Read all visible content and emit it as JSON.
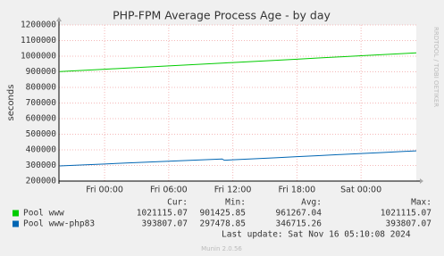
{
  "chart_data": {
    "type": "line",
    "title": "PHP-FPM Average Process Age - by day",
    "y_label": "seconds",
    "x": [
      -4.2,
      -2,
      0,
      2,
      4,
      6,
      8,
      10,
      11,
      11.2,
      12,
      14,
      16,
      18,
      20,
      22,
      24,
      26,
      28,
      29.17
    ],
    "series": [
      {
        "name": "Pool www",
        "color": "#00cc00",
        "values": [
          901426,
          909300,
          916500,
          923700,
          930900,
          938000,
          945200,
          952400,
          955900,
          956600,
          959500,
          966700,
          973900,
          981000,
          988200,
          995400,
          1002500,
          1009700,
          1016900,
          1021115
        ],
        "stats": [
          1021115.07,
          901425.85,
          961267.04,
          1021115.07
        ]
      },
      {
        "name": "Pool www-php83",
        "color": "#0066b3",
        "values": [
          297479,
          303800,
          309600,
          315400,
          321200,
          327000,
          332800,
          338600,
          341400,
          333500,
          336200,
          342900,
          349600,
          356300,
          363000,
          369700,
          376400,
          383100,
          389900,
          393807
        ],
        "stats": [
          393807.07,
          297478.85,
          346715.26,
          393807.07
        ]
      }
    ],
    "stats_headers": [
      "Cur:",
      "Min:",
      "Avg:",
      "Max:"
    ],
    "xlim": [
      -4.27,
      29.17
    ],
    "xticks": [
      {
        "value": 0,
        "label": "Fri 00:00"
      },
      {
        "value": 6,
        "label": "Fri 06:00"
      },
      {
        "value": 12,
        "label": "Fri 12:00"
      },
      {
        "value": 18,
        "label": "Fri 18:00"
      },
      {
        "value": 24,
        "label": "Sat 00:00"
      }
    ],
    "ylim": [
      200000,
      1200000
    ],
    "yticks": [
      200000,
      300000,
      400000,
      500000,
      600000,
      700000,
      800000,
      900000,
      1000000,
      1100000,
      1200000
    ],
    "grid": true,
    "last_update": "Last update: Sat Nov 16 05:10:08 2024",
    "footer": "Munin 2.0.56",
    "side_text": "RRDTOOL / TOBI OETIKER"
  }
}
